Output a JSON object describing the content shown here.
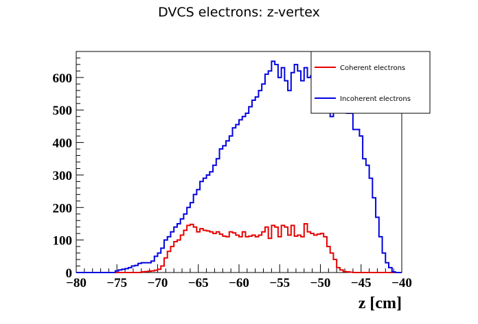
{
  "chart_data": {
    "type": "line",
    "title": "DVCS electrons: z-vertex",
    "xlabel": "z [cm]",
    "ylabel": "",
    "xlim": [
      -80,
      -40
    ],
    "ylim": [
      0,
      680
    ],
    "xticks": [
      "−80",
      "−75",
      "−70",
      "−65",
      "−60",
      "−55",
      "−50",
      "−45",
      "−40"
    ],
    "yticks": [
      "0",
      "100",
      "200",
      "300",
      "400",
      "500",
      "600"
    ],
    "grid": false,
    "legend_position": "top-right",
    "bin_edges_start": -80,
    "bin_width": 0.4,
    "series": [
      {
        "name": "Coherent electrons",
        "color": "#e60000",
        "values": [
          0,
          0,
          0,
          0,
          0,
          0,
          0,
          0,
          0,
          0,
          0,
          0,
          0,
          0,
          0,
          0,
          0,
          0,
          0,
          0,
          2,
          3,
          4,
          5,
          7,
          10,
          20,
          45,
          65,
          80,
          95,
          100,
          115,
          130,
          145,
          148,
          140,
          125,
          135,
          130,
          128,
          125,
          120,
          125,
          118,
          112,
          110,
          125,
          122,
          115,
          110,
          125,
          110,
          112,
          115,
          110,
          115,
          125,
          140,
          105,
          145,
          140,
          110,
          145,
          140,
          115,
          145,
          112,
          115,
          110,
          150,
          125,
          120,
          115,
          118,
          120,
          110,
          80,
          60,
          40,
          15,
          8,
          3,
          2,
          1,
          0,
          0,
          0,
          0,
          0,
          0,
          0,
          0,
          0,
          0,
          0,
          0,
          0,
          0,
          0
        ]
      },
      {
        "name": "Incoherent electrons",
        "color": "#0000e0",
        "values": [
          0,
          0,
          0,
          0,
          0,
          0,
          0,
          0,
          0,
          0,
          0,
          0,
          5,
          8,
          10,
          12,
          15,
          20,
          22,
          28,
          30,
          30,
          30,
          35,
          50,
          60,
          75,
          100,
          110,
          125,
          140,
          150,
          165,
          180,
          200,
          215,
          240,
          255,
          280,
          290,
          300,
          310,
          330,
          350,
          380,
          390,
          405,
          420,
          445,
          455,
          470,
          480,
          490,
          510,
          530,
          540,
          560,
          580,
          610,
          620,
          650,
          640,
          600,
          630,
          590,
          560,
          615,
          640,
          620,
          590,
          630,
          600,
          605,
          570,
          580,
          510,
          530,
          540,
          480,
          510,
          500,
          500,
          505,
          490,
          490,
          440,
          440,
          420,
          350,
          330,
          290,
          230,
          170,
          110,
          60,
          30,
          15,
          2,
          0,
          0
        ]
      }
    ]
  }
}
